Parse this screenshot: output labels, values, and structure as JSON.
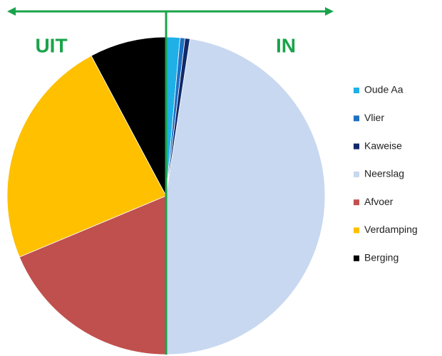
{
  "chart_data": {
    "type": "pie",
    "annotations": [
      "UIT",
      "IN"
    ],
    "categories": [
      "Oude Aa",
      "Vlier",
      "Kaweise",
      "Neerslag",
      "Afvoer",
      "Verdamping",
      "Berging"
    ],
    "values": [
      1.4,
      0.5,
      0.5,
      47.6,
      18.7,
      23.5,
      7.8
    ],
    "colors": [
      "#1fb0e8",
      "#1f6fc2",
      "#10296b",
      "#c8d8f0",
      "#c0504d",
      "#ffc000",
      "#000000"
    ],
    "legend": "right"
  }
}
